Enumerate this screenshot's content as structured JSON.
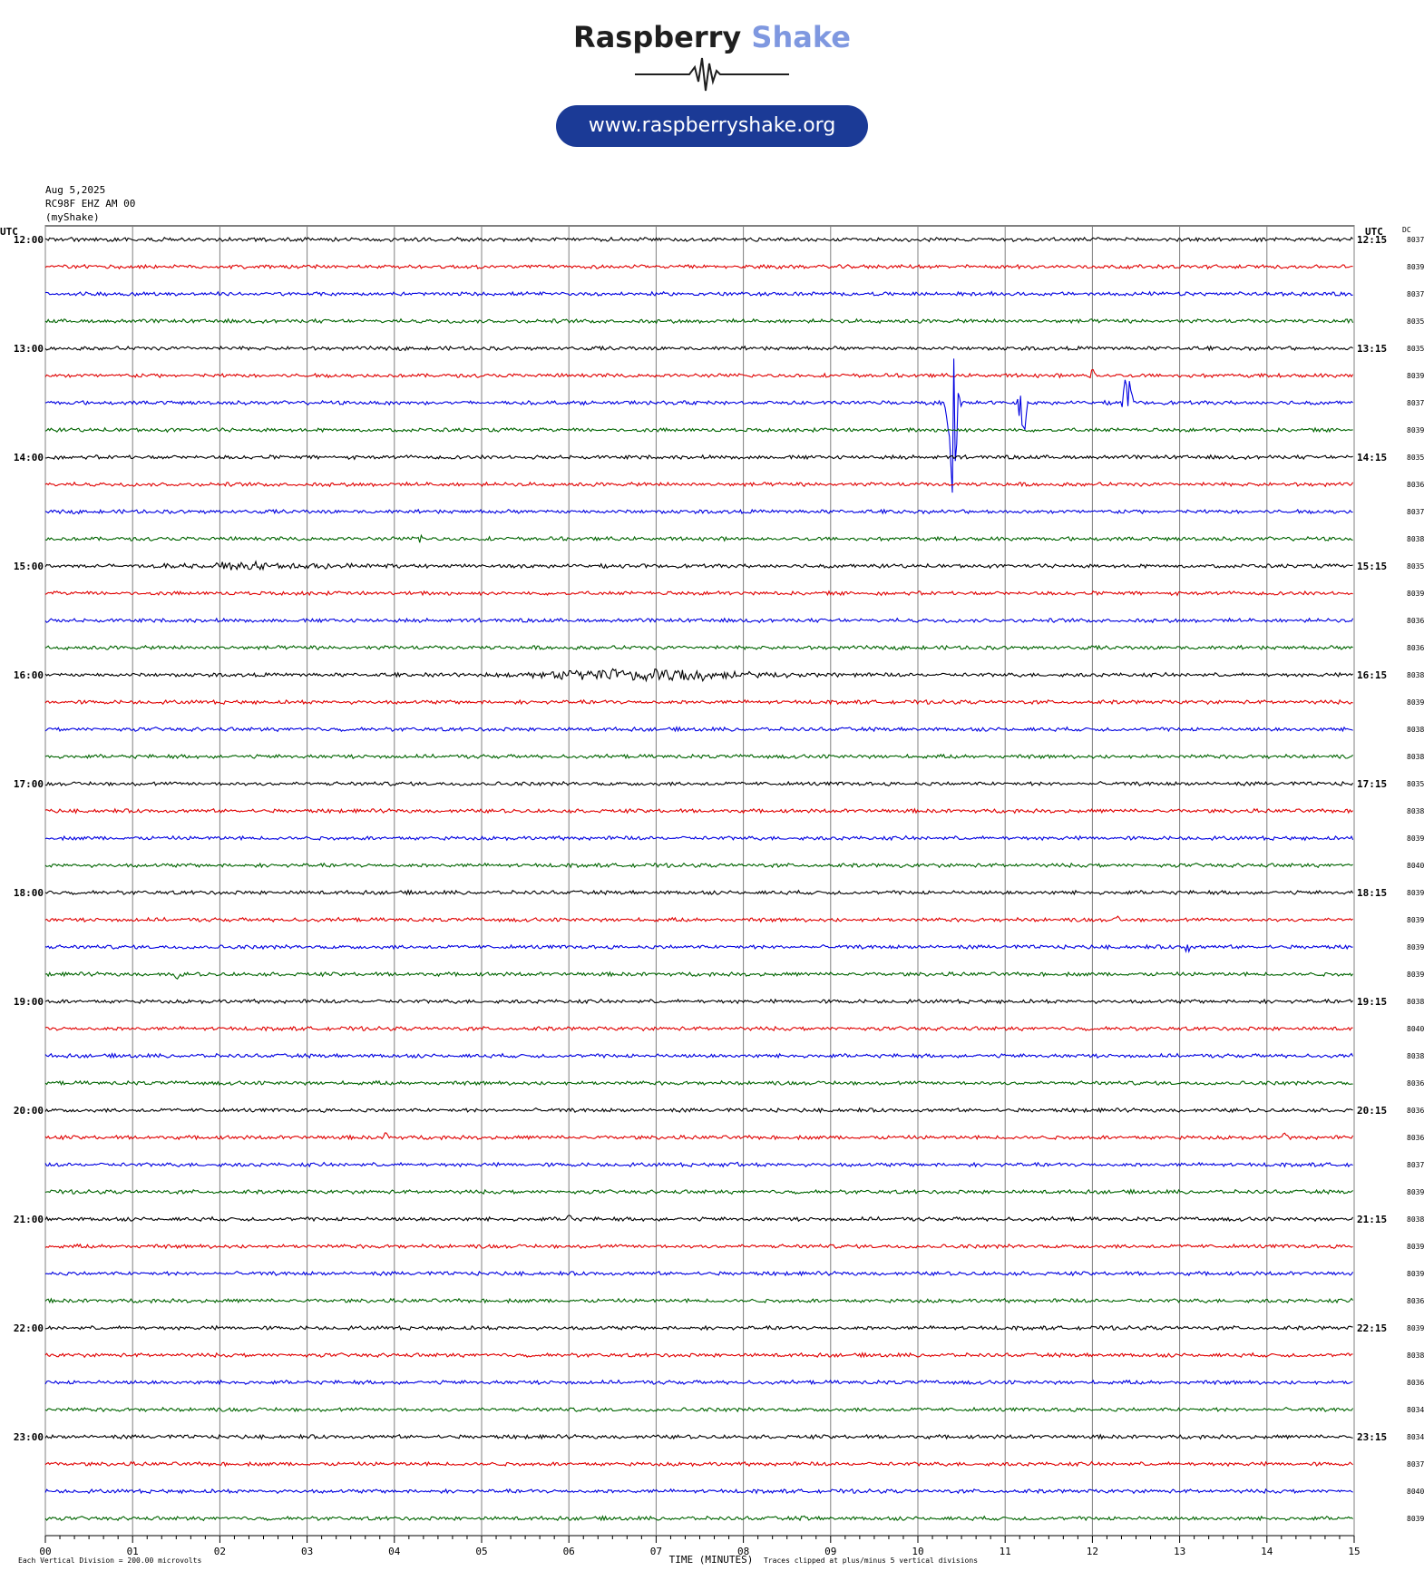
{
  "header": {
    "brand_word1": "Raspberry",
    "brand_word2": "Shake",
    "url": "www.raspberryshake.org",
    "brand_colors": {
      "dark": "#1f1f1f",
      "light": "#7f98e0",
      "pill": "#1b3a96"
    }
  },
  "meta": {
    "date": "Aug 5,2025",
    "station": "RC98F EHZ AM 00",
    "source": "(myShake)"
  },
  "chart_data": {
    "type": "line",
    "title": "",
    "xlabel": "TIME (MINUTES)",
    "left_axis_label": "UTC",
    "right_axis_label": "UTC",
    "dc_label": "DC",
    "xlim": [
      0,
      15
    ],
    "x_ticks": [
      "00",
      "01",
      "02",
      "03",
      "04",
      "05",
      "06",
      "07",
      "08",
      "09",
      "10",
      "11",
      "12",
      "13",
      "14",
      "15"
    ],
    "grid": "vertical lines every minute",
    "trace_colors": [
      "#000000",
      "#e00000",
      "#0000e0",
      "#006400"
    ],
    "left_time_labels": [
      "12:00",
      "13:00",
      "14:00",
      "15:00",
      "16:00",
      "17:00",
      "18:00",
      "19:00",
      "20:00",
      "21:00",
      "22:00",
      "23:00"
    ],
    "right_time_labels": [
      "12:15",
      "13:15",
      "14:15",
      "15:15",
      "16:15",
      "17:15",
      "18:15",
      "19:15",
      "20:15",
      "21:15",
      "22:15",
      "23:15"
    ],
    "dc_values": [
      8037,
      8039,
      8037,
      8035,
      8035,
      8039,
      8037,
      8039,
      8035,
      8036,
      8037,
      8038,
      8035,
      8039,
      8036,
      8036,
      8038,
      8039,
      8038,
      8038,
      8035,
      8038,
      8039,
      8040,
      8039,
      8039,
      8039,
      8039,
      8038,
      8040,
      8038,
      8036,
      8036,
      8036,
      8037,
      8039,
      8038,
      8039,
      8039,
      8036,
      8039,
      8038,
      8036,
      8034,
      8034,
      8037,
      8040,
      8039
    ],
    "footer_left": "Each Vertical Division =  200.00 microvolts",
    "footer_right": "Traces clipped at plus/minus 5 vertical divisions",
    "events": [
      {
        "trace": 6,
        "minute": 10.4,
        "amplitude": -13.0,
        "width": 0.12
      },
      {
        "trace": 6,
        "minute": 11.2,
        "amplitude": -5.0,
        "width": 0.1
      },
      {
        "trace": 6,
        "minute": 12.4,
        "amplitude": 4.5,
        "width": 0.1
      },
      {
        "trace": 5,
        "minute": 12.0,
        "amplitude": 1.5,
        "width": 0.06
      },
      {
        "trace": 11,
        "minute": 4.3,
        "amplitude": 1.0,
        "width": 0.05
      },
      {
        "trace": 16,
        "minute": 6.8,
        "amplitude": 1.2,
        "width": 2.6
      },
      {
        "trace": 23,
        "minute": 9.8,
        "amplitude": -0.8,
        "width": 0.05
      },
      {
        "trace": 25,
        "minute": 12.3,
        "amplitude": 0.6,
        "width": 0.05
      },
      {
        "trace": 26,
        "minute": 13.1,
        "amplitude": -0.8,
        "width": 0.08
      },
      {
        "trace": 27,
        "minute": 1.5,
        "amplitude": -0.7,
        "width": 0.08
      },
      {
        "trace": 33,
        "minute": 3.9,
        "amplitude": 0.8,
        "width": 0.05
      },
      {
        "trace": 33,
        "minute": 14.2,
        "amplitude": 0.6,
        "width": 0.05
      },
      {
        "trace": 34,
        "minute": 7.9,
        "amplitude": -0.9,
        "width": 0.08
      },
      {
        "trace": 36,
        "minute": 6.0,
        "amplitude": 0.8,
        "width": 0.05
      },
      {
        "trace": 12,
        "minute": 2.5,
        "amplitude": 0.5,
        "width": 2.5
      },
      {
        "trace": 47,
        "minute": 8.7,
        "amplitude": 0.6,
        "width": 0.05
      }
    ]
  }
}
